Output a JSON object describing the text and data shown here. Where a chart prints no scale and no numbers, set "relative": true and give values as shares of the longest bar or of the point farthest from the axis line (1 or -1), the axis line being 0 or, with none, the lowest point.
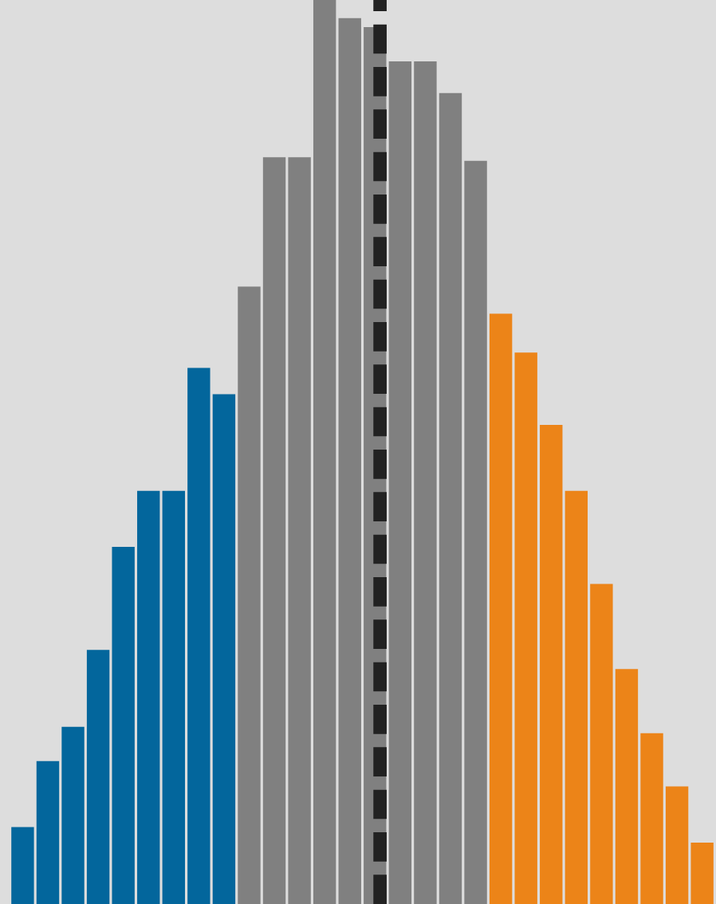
{
  "chart_data": {
    "type": "bar",
    "relative": true,
    "grid": false,
    "legend": false,
    "categories": [
      null,
      null,
      null,
      null,
      null,
      null,
      null,
      null,
      null,
      null,
      null,
      null,
      null,
      null,
      null,
      null,
      null,
      null,
      null,
      null,
      null,
      null,
      null,
      null,
      null,
      null,
      null,
      null
    ],
    "values": [
      0.085,
      0.158,
      0.196,
      0.281,
      0.395,
      0.457,
      0.457,
      0.593,
      0.564,
      0.683,
      0.826,
      0.826,
      1,
      0.98,
      0.97,
      0.932,
      0.932,
      0.897,
      0.822,
      0.653,
      0.61,
      0.53,
      0.457,
      0.354,
      0.26,
      0.189,
      0.13,
      0.068
    ],
    "colors": [
      "#03669c",
      "#03669c",
      "#03669c",
      "#03669c",
      "#03669c",
      "#03669c",
      "#03669c",
      "#03669c",
      "#03669c",
      "#808080",
      "#808080",
      "#808080",
      "#808080",
      "#808080",
      "#808080",
      "#808080",
      "#808080",
      "#808080",
      "#808080",
      "#ec8418",
      "#ec8418",
      "#ec8418",
      "#ec8418",
      "#ec8418",
      "#ec8418",
      "#ec8418",
      "#ec8418",
      "#ec8418"
    ]
  }
}
